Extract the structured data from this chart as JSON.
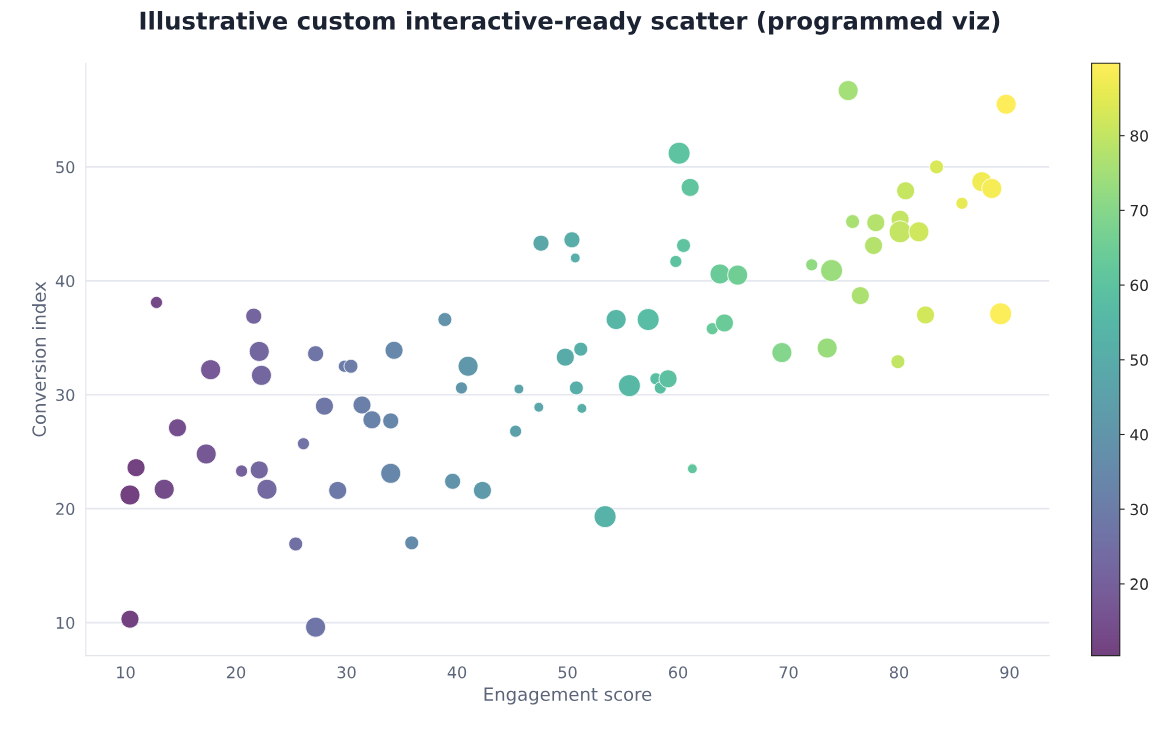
{
  "chart_data": {
    "type": "bubble",
    "title": "Illustrative custom interactive-ready scatter (programmed viz)",
    "xlabel": "Engagement score",
    "ylabel": "Conversion index",
    "x": [
      10.4,
      10.95,
      10.4,
      12.8,
      13.5,
      14.7,
      17.3,
      17.7,
      20.5,
      21.6,
      22.1,
      22.3,
      22.1,
      22.8,
      25.4,
      26.1,
      27.2,
      27.2,
      28.0,
      29.2,
      29.8,
      30.4,
      31.4,
      32.3,
      34.0,
      34.3,
      34.0,
      35.9,
      38.9,
      39.6,
      40.4,
      41.0,
      42.3,
      45.3,
      45.6,
      47.4,
      47.6,
      49.8,
      50.4,
      50.7,
      50.8,
      51.2,
      51.3,
      53.4,
      54.4,
      55.6,
      57.3,
      58.0,
      58.4,
      59.1,
      59.8,
      60.1,
      60.5,
      61.1,
      61.3,
      63.1,
      63.8,
      64.2,
      65.4,
      69.4,
      72.1,
      73.5,
      73.9,
      75.4,
      75.8,
      76.5,
      77.7,
      77.9,
      79.9,
      80.1,
      80.1,
      80.6,
      81.8,
      82.4,
      83.4,
      85.7,
      87.5,
      88.4,
      89.2,
      89.7
    ],
    "values": [
      21.2,
      23.6,
      10.3,
      38.1,
      21.7,
      27.1,
      24.8,
      32.2,
      23.3,
      36.9,
      33.8,
      31.7,
      23.4,
      21.7,
      16.9,
      25.7,
      33.6,
      9.6,
      29.0,
      21.6,
      32.5,
      32.5,
      29.1,
      27.8,
      27.7,
      33.9,
      23.1,
      17.0,
      36.6,
      22.4,
      30.6,
      32.5,
      21.6,
      26.8,
      30.5,
      28.9,
      43.3,
      33.3,
      43.6,
      42.0,
      30.6,
      34.0,
      28.8,
      19.3,
      36.6,
      30.8,
      36.6,
      31.4,
      30.6,
      31.4,
      41.7,
      51.2,
      43.1,
      48.2,
      23.5,
      35.8,
      40.6,
      36.3,
      40.5,
      33.7,
      41.4,
      34.1,
      40.9,
      56.7,
      45.2,
      38.7,
      43.1,
      45.1,
      32.9,
      45.4,
      44.3,
      47.9,
      44.3,
      37.0,
      50.0,
      46.8,
      48.7,
      48.1,
      37.1,
      55.5
    ],
    "sizes": [
      0.83,
      0.67,
      0.67,
      0.3,
      0.83,
      0.67,
      0.83,
      0.83,
      0.3,
      0.53,
      0.83,
      0.83,
      0.67,
      0.83,
      0.4,
      0.3,
      0.53,
      0.83,
      0.67,
      0.67,
      0.3,
      0.4,
      0.67,
      0.67,
      0.53,
      0.67,
      0.83,
      0.4,
      0.4,
      0.53,
      0.3,
      0.83,
      0.67,
      0.3,
      0.2,
      0.2,
      0.53,
      0.67,
      0.53,
      0.2,
      0.4,
      0.4,
      0.2,
      1,
      0.83,
      1,
      1,
      0.3,
      0.3,
      0.67,
      0.3,
      1,
      0.4,
      0.67,
      0.2,
      0.3,
      0.83,
      0.67,
      0.83,
      0.83,
      0.3,
      0.83,
      1,
      0.83,
      0.4,
      0.67,
      0.67,
      0.67,
      0.4,
      0.67,
      1,
      0.67,
      0.83,
      0.67,
      0.4,
      0.3,
      0.83,
      0.83,
      1,
      0.83
    ],
    "cvalues": [
      10.4,
      10.95,
      10.4,
      12.8,
      13.5,
      14.7,
      17.3,
      17.7,
      20.5,
      21.6,
      22.1,
      22.3,
      22.1,
      22.8,
      25.4,
      26.1,
      27.2,
      27.2,
      28.0,
      29.2,
      29.8,
      30.4,
      31.4,
      32.3,
      34.0,
      34.3,
      34.0,
      35.9,
      38.9,
      39.6,
      40.4,
      41.0,
      42.3,
      45.3,
      45.6,
      47.4,
      47.6,
      49.8,
      50.4,
      50.7,
      50.8,
      51.2,
      51.3,
      53.4,
      54.4,
      55.6,
      57.3,
      58.0,
      58.4,
      59.1,
      59.8,
      60.1,
      60.5,
      61.1,
      61.3,
      63.1,
      63.8,
      64.2,
      65.4,
      69.4,
      72.1,
      73.5,
      73.9,
      75.4,
      75.8,
      76.5,
      77.7,
      77.9,
      79.9,
      80.1,
      80.1,
      80.6,
      81.8,
      82.4,
      83.4,
      85.7,
      87.5,
      88.4,
      89.2,
      89.7
    ],
    "clim": [
      10.4,
      89.7
    ],
    "cticks": [
      20,
      30,
      40,
      50,
      60,
      70,
      80
    ],
    "xlim": [
      6.4,
      93.6
    ],
    "xticks": [
      10,
      20,
      30,
      40,
      50,
      60,
      70,
      80,
      90
    ],
    "ylim": [
      7.1,
      59.1
    ],
    "yticks": [
      10,
      20,
      30,
      40,
      50
    ],
    "grid": "y",
    "marker": "circle"
  }
}
